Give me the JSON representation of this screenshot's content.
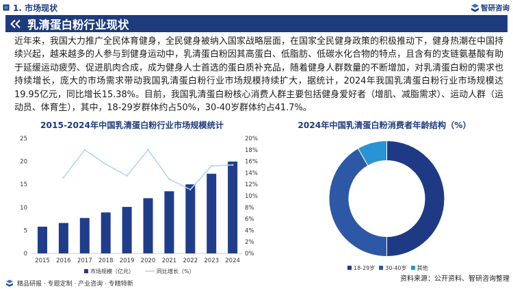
{
  "header": {
    "section_title": "1. 市场现状",
    "logo_text": "智研咨询"
  },
  "banner": {
    "title": "乳清蛋白粉行业现状"
  },
  "intro": {
    "text": "近年来，我国大力推广全民体育健身，全民健身被纳入国家战略层面，在国家全民健身政策的积极推动下，健身热潮在中国持续兴起，越来越多的人参与到健身运动中，乳清蛋白粉因其高蛋白、低脂肪、低碳水化合物的特点，且含有的支链氨基酸有助于延缓运动疲劳、促进肌肉合成，成为健身人士首选的蛋白质补充品，随着健身人群数量的不断增加，对乳清蛋白粉的需求也持续增长，庞大的市场需求带动我国乳清蛋白粉行业市场规模持续扩大，据统计，2024年我国乳清蛋白粉行业市场规模达19.95亿元，同比增长15.38%。目前，我国乳清蛋白粉核心消费人群主要包括健身爱好者（增肌、减脂需求）、运动人群（运动员、体育生），其中，18-29岁群体约占50%，30-40岁群体约占41.7%。"
  },
  "chart_data": [
    {
      "type": "bar",
      "title": "2015-2024年中国乳清蛋白粉行业市场规模统计",
      "categories": [
        "2015",
        "2016",
        "2017",
        "2018",
        "2019",
        "2020",
        "2021",
        "2022",
        "2023",
        "2024"
      ],
      "series": [
        {
          "name": "市场规模（亿元）",
          "type": "bar",
          "axis": "left",
          "values": [
            5.8,
            6.6,
            7.7,
            8.9,
            10.1,
            12.0,
            13.5,
            15.0,
            17.3,
            19.95
          ],
          "color": "#1f3d8a"
        },
        {
          "name": "同比增长（%）",
          "type": "line",
          "axis": "right",
          "values": [
            null,
            13.2,
            18.0,
            15.5,
            13.5,
            18.0,
            12.9,
            11.1,
            15.2,
            15.38
          ],
          "color": "#aed6f1"
        }
      ],
      "y_left": {
        "range": [
          0,
          25
        ],
        "ticks": [
          "0",
          "5",
          "10",
          "15",
          "20",
          "25"
        ]
      },
      "y_right": {
        "range": [
          0,
          20
        ],
        "ticks": [
          "0%",
          "2%",
          "4%",
          "6%",
          "8%",
          "10%",
          "12%",
          "14%",
          "16%",
          "18%",
          "20%"
        ]
      },
      "grid": false,
      "legend_position": "bottom"
    },
    {
      "type": "pie",
      "donut": true,
      "title": "2024年中国乳清蛋白粉消费者年龄结构（%）",
      "slices": [
        {
          "label": "18-29岁",
          "value": 50,
          "color": "#1f3a85"
        },
        {
          "label": "30-40岁",
          "value": 41.7,
          "color": "#2d58a6"
        },
        {
          "label": "其他",
          "value": 8.3,
          "color": "#2a93d3"
        }
      ],
      "legend_position": "bottom"
    }
  ],
  "source": "资料来源：公开资料、智研咨询整理",
  "footer": {
    "tagline": "精品研报 · 专题定制 · 产业咨询 · 专精特新"
  },
  "colors": {
    "brand_navy": "#1d3b7d",
    "banner_text": "#ffffff"
  },
  "icons": {
    "section": "cube-icon",
    "banner": "double-chevron-left-icon",
    "logo": "brand-logo-icon",
    "footer": "brand-logo-icon"
  }
}
